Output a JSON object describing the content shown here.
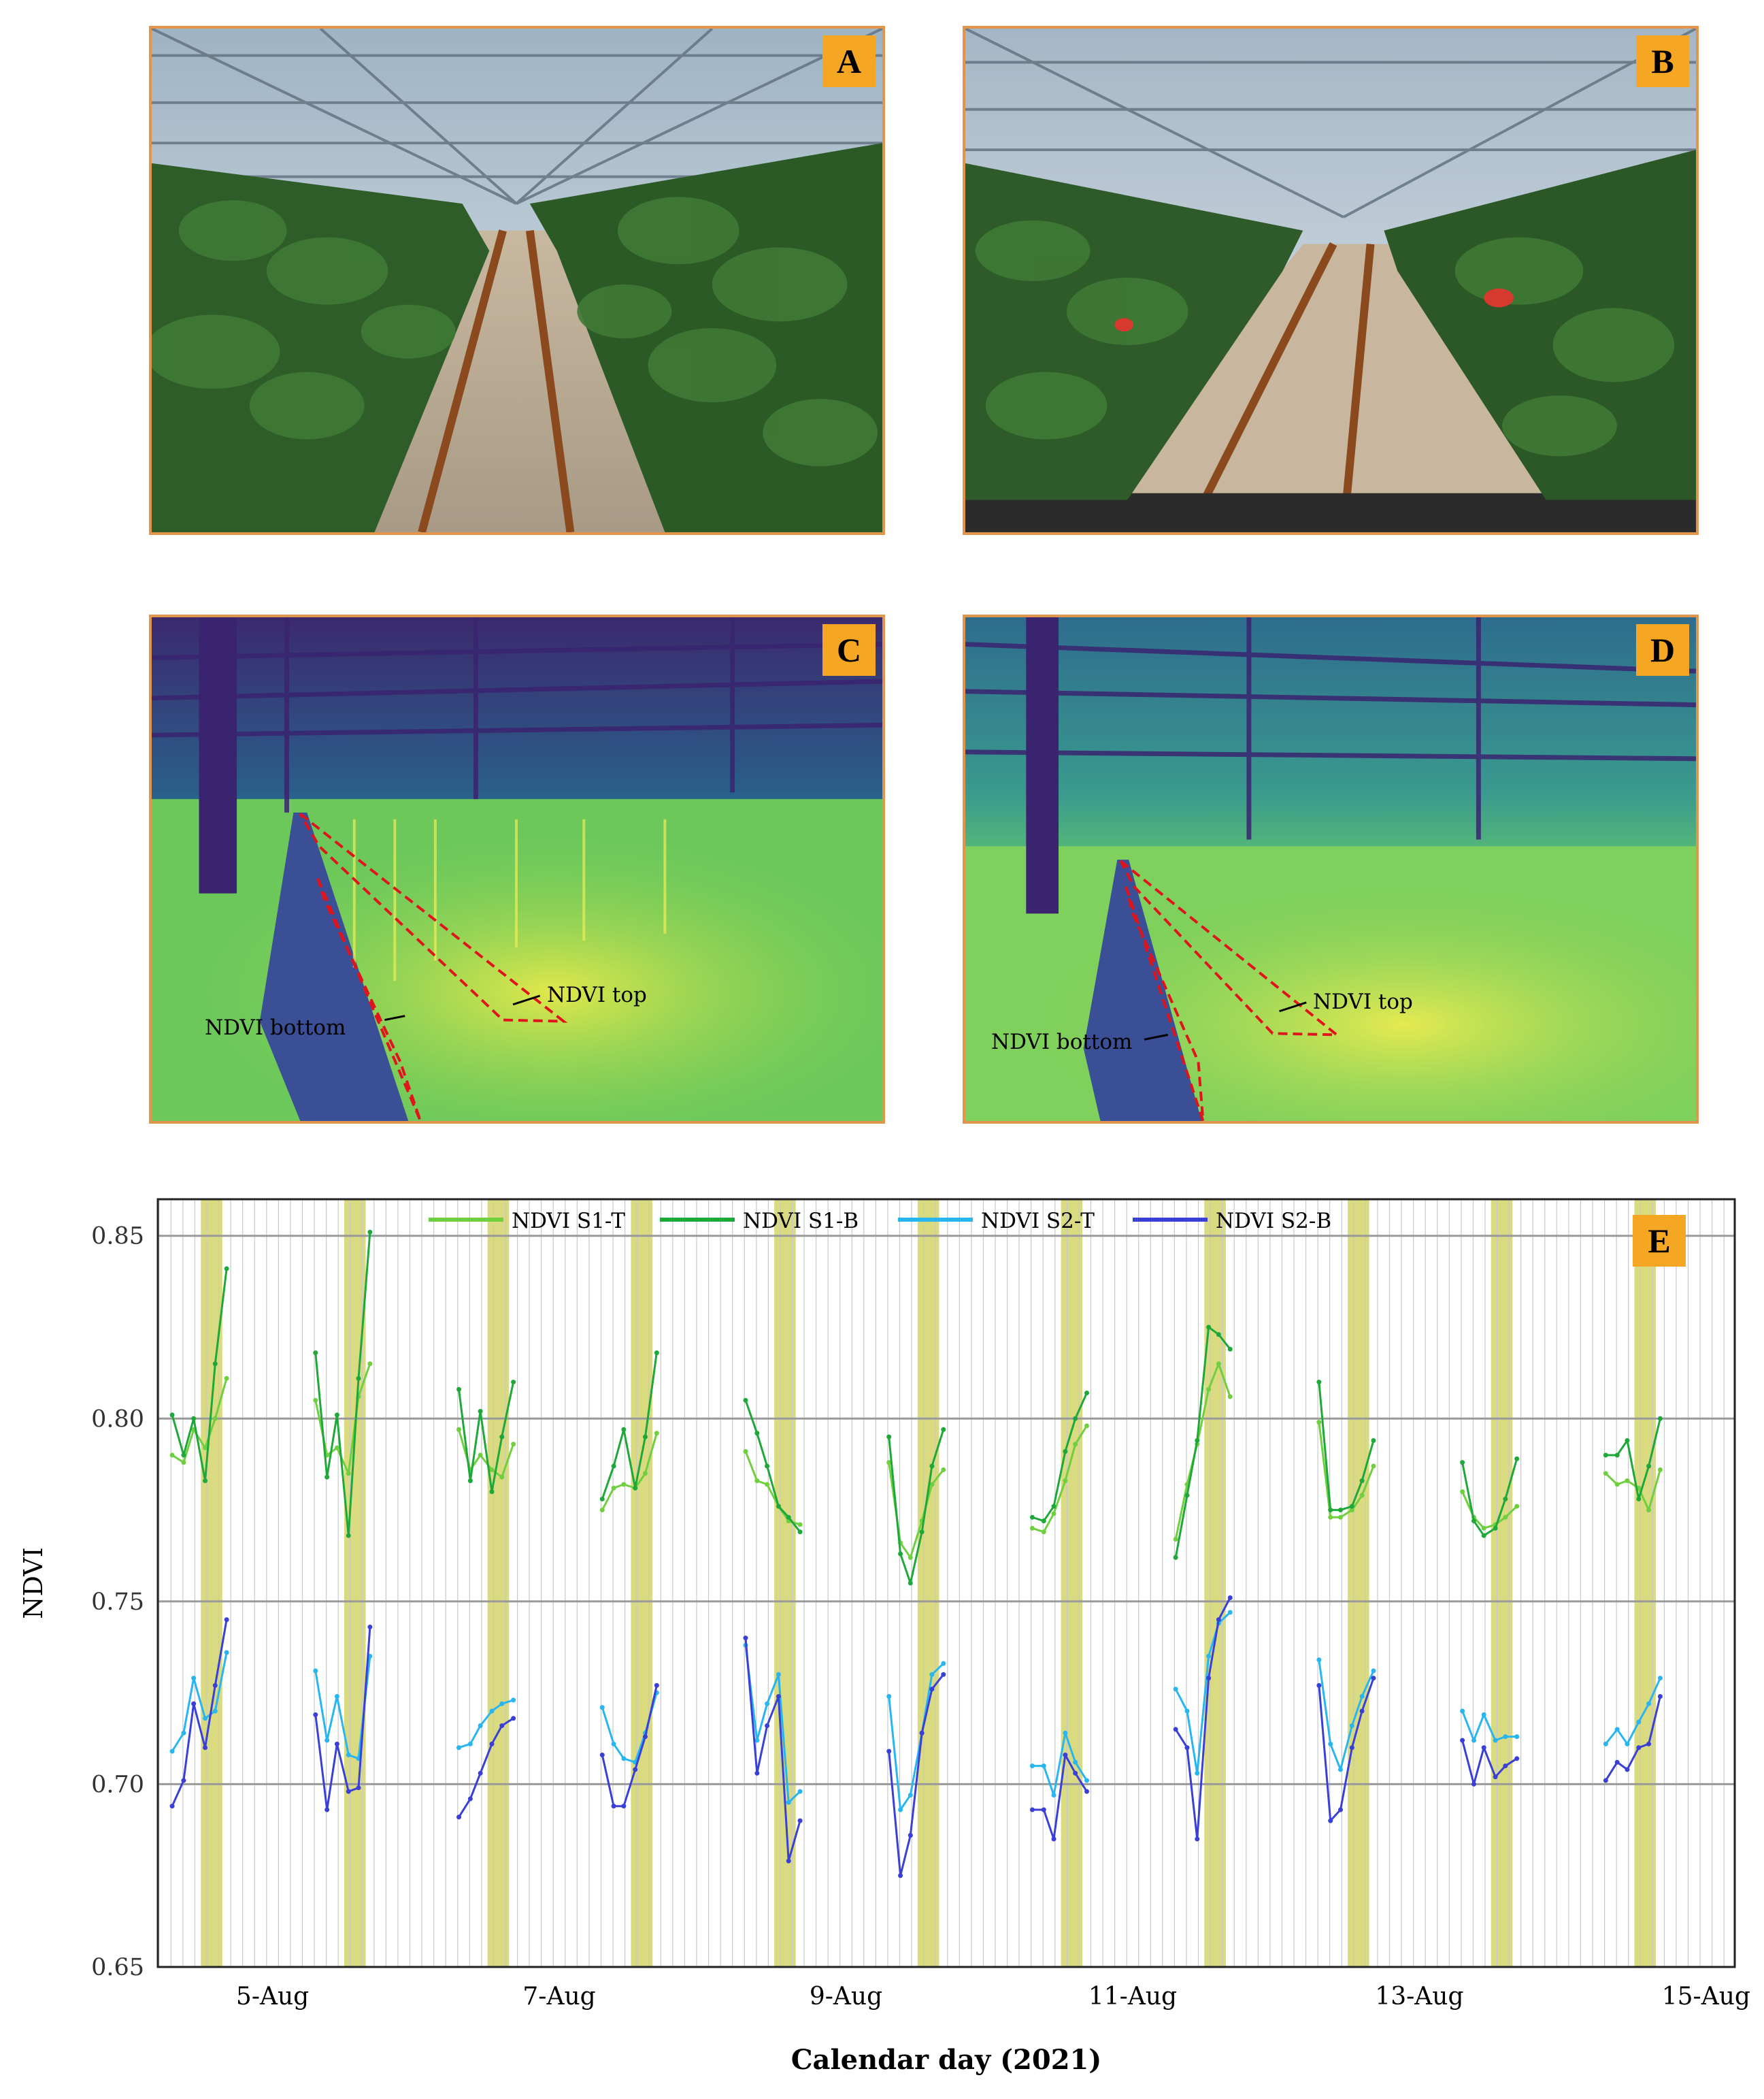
{
  "panels": {
    "a": {
      "letter": "A"
    },
    "b": {
      "letter": "B"
    },
    "c": {
      "letter": "C",
      "label_top": "NDVI top",
      "label_bottom": "NDVI bottom"
    },
    "d": {
      "letter": "D",
      "label_top": "NDVI top",
      "label_bottom": "NDVI bottom"
    },
    "e": {
      "letter": "E"
    }
  },
  "chart_data": {
    "type": "line",
    "xlabel": "Calendar day (2021)",
    "ylabel": "NDVI",
    "ylim": [
      0.65,
      0.86
    ],
    "yticks": [
      "0.65",
      "0.70",
      "0.75",
      "0.80",
      "0.85"
    ],
    "x_axis_range_days": [
      4.2,
      15.2
    ],
    "xtick_labels": [
      "5-Aug",
      "7-Aug",
      "9-Aug",
      "11-Aug",
      "13-Aug",
      "15-Aug"
    ],
    "xtick_positions_days": [
      5,
      7,
      9,
      11,
      13,
      15
    ],
    "grid": true,
    "legend_position": "top",
    "highlight_bands_days": [
      [
        4.5,
        4.65
      ],
      [
        5.5,
        5.65
      ],
      [
        6.5,
        6.65
      ],
      [
        7.5,
        7.65
      ],
      [
        8.5,
        8.65
      ],
      [
        9.5,
        9.65
      ],
      [
        10.5,
        10.65
      ],
      [
        11.5,
        11.65
      ],
      [
        12.5,
        12.65
      ],
      [
        13.5,
        13.65
      ],
      [
        14.5,
        14.65
      ]
    ],
    "highlight_color": "#d4d46a",
    "series": [
      {
        "name": "NDVI S1-T",
        "color": "#6fcf3f",
        "segments": [
          {
            "x": [
              4.3,
              4.38,
              4.45,
              4.53,
              4.6,
              4.68
            ],
            "y": [
              0.79,
              0.788,
              0.797,
              0.792,
              0.8,
              0.811
            ]
          },
          {
            "x": [
              5.3,
              5.38,
              5.45,
              5.53,
              5.6,
              5.68
            ],
            "y": [
              0.805,
              0.79,
              0.792,
              0.785,
              0.806,
              0.815
            ]
          },
          {
            "x": [
              6.3,
              6.38,
              6.45,
              6.53,
              6.6,
              6.68
            ],
            "y": [
              0.797,
              0.786,
              0.79,
              0.786,
              0.784,
              0.793
            ]
          },
          {
            "x": [
              7.3,
              7.38,
              7.45,
              7.53,
              7.6,
              7.68
            ],
            "y": [
              0.775,
              0.781,
              0.782,
              0.781,
              0.785,
              0.796
            ]
          },
          {
            "x": [
              8.3,
              8.38,
              8.45,
              8.53,
              8.6,
              8.68
            ],
            "y": [
              0.791,
              0.783,
              0.782,
              0.776,
              0.772,
              0.771
            ]
          },
          {
            "x": [
              9.3,
              9.38,
              9.45,
              9.53,
              9.6,
              9.68
            ],
            "y": [
              0.788,
              0.766,
              0.762,
              0.772,
              0.782,
              0.786
            ]
          },
          {
            "x": [
              10.3,
              10.38,
              10.45,
              10.53,
              10.6,
              10.68
            ],
            "y": [
              0.77,
              0.769,
              0.774,
              0.783,
              0.793,
              0.798
            ]
          },
          {
            "x": [
              11.3,
              11.38,
              11.45,
              11.53,
              11.6,
              11.68
            ],
            "y": [
              0.767,
              0.782,
              0.793,
              0.808,
              0.815,
              0.806
            ]
          },
          {
            "x": [
              12.3,
              12.38,
              12.45,
              12.53,
              12.6,
              12.68
            ],
            "y": [
              0.799,
              0.773,
              0.773,
              0.775,
              0.779,
              0.787
            ]
          },
          {
            "x": [
              13.3,
              13.38,
              13.45,
              13.53,
              13.6,
              13.68
            ],
            "y": [
              0.78,
              0.773,
              0.77,
              0.771,
              0.773,
              0.776
            ]
          },
          {
            "x": [
              14.3,
              14.38,
              14.45,
              14.53,
              14.6,
              14.68
            ],
            "y": [
              0.785,
              0.782,
              0.783,
              0.781,
              0.775,
              0.786
            ]
          }
        ]
      },
      {
        "name": "NDVI S1-B",
        "color": "#1fa83a",
        "segments": [
          {
            "x": [
              4.3,
              4.38,
              4.45,
              4.53,
              4.6,
              4.68
            ],
            "y": [
              0.801,
              0.79,
              0.8,
              0.783,
              0.815,
              0.841
            ]
          },
          {
            "x": [
              5.3,
              5.38,
              5.45,
              5.53,
              5.6,
              5.68
            ],
            "y": [
              0.818,
              0.784,
              0.801,
              0.768,
              0.811,
              0.851
            ]
          },
          {
            "x": [
              6.3,
              6.38,
              6.45,
              6.53,
              6.6,
              6.68
            ],
            "y": [
              0.808,
              0.783,
              0.802,
              0.78,
              0.795,
              0.81
            ]
          },
          {
            "x": [
              7.3,
              7.38,
              7.45,
              7.53,
              7.6,
              7.68
            ],
            "y": [
              0.778,
              0.787,
              0.797,
              0.781,
              0.795,
              0.818
            ]
          },
          {
            "x": [
              8.3,
              8.38,
              8.45,
              8.53,
              8.6,
              8.68
            ],
            "y": [
              0.805,
              0.796,
              0.787,
              0.776,
              0.773,
              0.769
            ]
          },
          {
            "x": [
              9.3,
              9.38,
              9.45,
              9.53,
              9.6,
              9.68
            ],
            "y": [
              0.795,
              0.763,
              0.755,
              0.769,
              0.787,
              0.797
            ]
          },
          {
            "x": [
              10.3,
              10.38,
              10.45,
              10.53,
              10.6,
              10.68
            ],
            "y": [
              0.773,
              0.772,
              0.776,
              0.791,
              0.8,
              0.807
            ]
          },
          {
            "x": [
              11.3,
              11.38,
              11.45,
              11.53,
              11.6,
              11.68
            ],
            "y": [
              0.762,
              0.779,
              0.794,
              0.825,
              0.823,
              0.819
            ]
          },
          {
            "x": [
              12.3,
              12.38,
              12.45,
              12.53,
              12.6,
              12.68
            ],
            "y": [
              0.81,
              0.775,
              0.775,
              0.776,
              0.783,
              0.794
            ]
          },
          {
            "x": [
              13.3,
              13.38,
              13.45,
              13.53,
              13.6,
              13.68
            ],
            "y": [
              0.788,
              0.772,
              0.768,
              0.77,
              0.778,
              0.789
            ]
          },
          {
            "x": [
              14.3,
              14.38,
              14.45,
              14.53,
              14.6,
              14.68
            ],
            "y": [
              0.79,
              0.79,
              0.794,
              0.778,
              0.787,
              0.8
            ]
          }
        ]
      },
      {
        "name": "NDVI S2-T",
        "color": "#29b6f0",
        "segments": [
          {
            "x": [
              4.3,
              4.38,
              4.45,
              4.53,
              4.6,
              4.68
            ],
            "y": [
              0.709,
              0.714,
              0.729,
              0.718,
              0.72,
              0.736
            ]
          },
          {
            "x": [
              5.3,
              5.38,
              5.45,
              5.53,
              5.6,
              5.68
            ],
            "y": [
              0.731,
              0.712,
              0.724,
              0.708,
              0.707,
              0.735
            ]
          },
          {
            "x": [
              6.3,
              6.38,
              6.45,
              6.53,
              6.6,
              6.68
            ],
            "y": [
              0.71,
              0.711,
              0.716,
              0.72,
              0.722,
              0.723
            ]
          },
          {
            "x": [
              7.3,
              7.38,
              7.45,
              7.53,
              7.6,
              7.68
            ],
            "y": [
              0.721,
              0.711,
              0.707,
              0.706,
              0.714,
              0.725
            ]
          },
          {
            "x": [
              8.3,
              8.38,
              8.45,
              8.53,
              8.6,
              8.68
            ],
            "y": [
              0.738,
              0.712,
              0.722,
              0.73,
              0.695,
              0.698
            ]
          },
          {
            "x": [
              9.3,
              9.38,
              9.45,
              9.53,
              9.6,
              9.68
            ],
            "y": [
              0.724,
              0.693,
              0.697,
              0.714,
              0.73,
              0.733
            ]
          },
          {
            "x": [
              10.3,
              10.38,
              10.45,
              10.53,
              10.6,
              10.68
            ],
            "y": [
              0.705,
              0.705,
              0.697,
              0.714,
              0.706,
              0.701
            ]
          },
          {
            "x": [
              11.3,
              11.38,
              11.45,
              11.53,
              11.6,
              11.68
            ],
            "y": [
              0.726,
              0.72,
              0.703,
              0.735,
              0.744,
              0.747
            ]
          },
          {
            "x": [
              12.3,
              12.38,
              12.45,
              12.53,
              12.6,
              12.68
            ],
            "y": [
              0.734,
              0.711,
              0.704,
              0.716,
              0.724,
              0.731
            ]
          },
          {
            "x": [
              13.3,
              13.38,
              13.45,
              13.53,
              13.6,
              13.68
            ],
            "y": [
              0.72,
              0.712,
              0.719,
              0.712,
              0.713,
              0.713
            ]
          },
          {
            "x": [
              14.3,
              14.38,
              14.45,
              14.53,
              14.6,
              14.68
            ],
            "y": [
              0.711,
              0.715,
              0.711,
              0.717,
              0.722,
              0.729
            ]
          }
        ]
      },
      {
        "name": "NDVI S2-B",
        "color": "#3a3fd6",
        "segments": [
          {
            "x": [
              4.3,
              4.38,
              4.45,
              4.53,
              4.6,
              4.68
            ],
            "y": [
              0.694,
              0.701,
              0.722,
              0.71,
              0.727,
              0.745
            ]
          },
          {
            "x": [
              5.3,
              5.38,
              5.45,
              5.53,
              5.6,
              5.68
            ],
            "y": [
              0.719,
              0.693,
              0.711,
              0.698,
              0.699,
              0.743
            ]
          },
          {
            "x": [
              6.3,
              6.38,
              6.45,
              6.53,
              6.6,
              6.68
            ],
            "y": [
              0.691,
              0.696,
              0.703,
              0.711,
              0.716,
              0.718
            ]
          },
          {
            "x": [
              7.3,
              7.38,
              7.45,
              7.53,
              7.6,
              7.68
            ],
            "y": [
              0.708,
              0.694,
              0.694,
              0.704,
              0.713,
              0.727
            ]
          },
          {
            "x": [
              8.3,
              8.38,
              8.45,
              8.53,
              8.6,
              8.68
            ],
            "y": [
              0.74,
              0.703,
              0.716,
              0.724,
              0.679,
              0.69
            ]
          },
          {
            "x": [
              9.3,
              9.38,
              9.45,
              9.53,
              9.6,
              9.68
            ],
            "y": [
              0.709,
              0.675,
              0.686,
              0.714,
              0.726,
              0.73
            ]
          },
          {
            "x": [
              10.3,
              10.38,
              10.45,
              10.53,
              10.6,
              10.68
            ],
            "y": [
              0.693,
              0.693,
              0.685,
              0.708,
              0.703,
              0.698
            ]
          },
          {
            "x": [
              11.3,
              11.38,
              11.45,
              11.53,
              11.6,
              11.68
            ],
            "y": [
              0.715,
              0.71,
              0.685,
              0.729,
              0.745,
              0.751
            ]
          },
          {
            "x": [
              12.3,
              12.38,
              12.45,
              12.53,
              12.6,
              12.68
            ],
            "y": [
              0.727,
              0.69,
              0.693,
              0.71,
              0.72,
              0.729
            ]
          },
          {
            "x": [
              13.3,
              13.38,
              13.45,
              13.53,
              13.6,
              13.68
            ],
            "y": [
              0.712,
              0.7,
              0.71,
              0.702,
              0.705,
              0.707
            ]
          },
          {
            "x": [
              14.3,
              14.38,
              14.45,
              14.53,
              14.6,
              14.68
            ],
            "y": [
              0.701,
              0.706,
              0.704,
              0.71,
              0.711,
              0.724
            ]
          }
        ]
      }
    ]
  }
}
